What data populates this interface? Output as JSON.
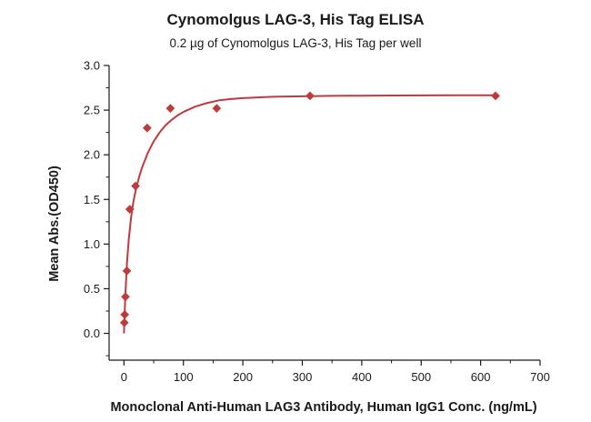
{
  "chart_data": {
    "type": "scatter",
    "title": "Cynomolgus LAG-3, His Tag ELISA",
    "subtitle": "0.2 µg of Cynomolgus LAG-3, His Tag per well",
    "xlabel": "Monoclonal Anti-Human LAG3 Antibody, Human IgG1 Conc. (ng/mL)",
    "ylabel": "Mean Abs.(OD450)",
    "xlim": [
      -25,
      700
    ],
    "ylim": [
      -0.3,
      3.0
    ],
    "xticks": [
      0,
      100,
      200,
      300,
      400,
      500,
      600,
      700
    ],
    "yticks": [
      0.0,
      0.5,
      1.0,
      1.5,
      2.0,
      2.5,
      3.0
    ],
    "xtick_labels": [
      "0",
      "100",
      "200",
      "300",
      "400",
      "500",
      "600",
      "700"
    ],
    "ytick_labels": [
      "0.0",
      "0.5",
      "1.0",
      "1.5",
      "2.0",
      "2.5",
      "3.0"
    ],
    "grid": false,
    "series": [
      {
        "marker": "diamond",
        "color": "#c0393b",
        "x": [
          0.61,
          1.22,
          2.44,
          4.88,
          9.77,
          19.5,
          39.1,
          78.1,
          156,
          313,
          625
        ],
        "y": [
          0.12,
          0.21,
          0.41,
          0.7,
          1.39,
          1.65,
          2.3,
          2.52,
          2.52,
          2.66,
          2.66
        ]
      }
    ],
    "fit_curve": {
      "color": "#c0393b",
      "x": [
        0,
        1,
        2.5,
        5,
        8,
        12,
        16,
        20,
        25,
        30,
        40,
        50,
        60,
        70,
        80,
        90,
        100,
        120,
        140,
        160,
        180,
        200,
        250,
        300,
        350,
        400,
        450,
        500,
        550,
        600,
        625
      ],
      "y": [
        0.0,
        0.2,
        0.45,
        0.78,
        1.05,
        1.3,
        1.48,
        1.61,
        1.74,
        1.85,
        2.02,
        2.15,
        2.25,
        2.33,
        2.39,
        2.44,
        2.48,
        2.54,
        2.58,
        2.61,
        2.625,
        2.635,
        2.65,
        2.655,
        2.66,
        2.662,
        2.664,
        2.665,
        2.666,
        2.667,
        2.667
      ]
    }
  }
}
